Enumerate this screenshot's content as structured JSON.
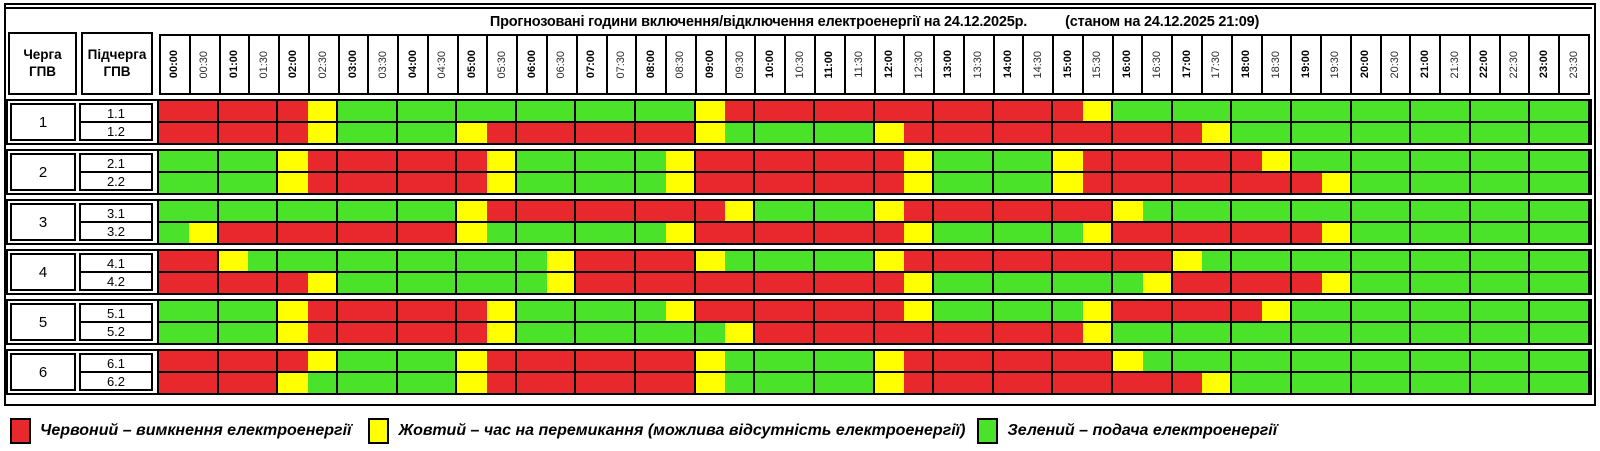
{
  "header": {
    "queue_col": "Черга ГПВ",
    "subqueue_col": "Підчерга ГПВ",
    "title": "Прогнозовані години включення/відключення електроенергії на 24.12.2025р.",
    "status": "(станом на 24.12.2025 21:09)",
    "times": [
      "00:00",
      "00:30",
      "01:00",
      "01:30",
      "02:00",
      "02:30",
      "03:00",
      "03:30",
      "04:00",
      "04:30",
      "05:00",
      "05:30",
      "06:00",
      "06:30",
      "07:00",
      "07:30",
      "08:00",
      "08:30",
      "09:00",
      "09:30",
      "10:00",
      "10:30",
      "11:00",
      "11:30",
      "12:00",
      "12:30",
      "13:00",
      "13:30",
      "14:00",
      "14:30",
      "15:00",
      "15:30",
      "16:00",
      "16:30",
      "17:00",
      "17:30",
      "18:00",
      "18:30",
      "19:00",
      "19:30",
      "20:00",
      "20:30",
      "21:00",
      "21:30",
      "22:00",
      "22:30",
      "23:00",
      "23:30"
    ]
  },
  "colors": {
    "R": "#e8282d",
    "Y": "#ffff00",
    "G": "#4be32a"
  },
  "groups": [
    {
      "queue": "1",
      "rows": [
        {
          "label": "1.1",
          "pattern": "RRRRRYGGGGGGGGGGGGYRRRRRRRRRRRRYGGGGGGGGGGGGGGGG"
        },
        {
          "label": "1.2",
          "pattern": "RRRRRYGGGGYRRRRRRRYGGGGGYRRRRRRRRRRYGGGGGGGGGGGG"
        }
      ]
    },
    {
      "queue": "2",
      "rows": [
        {
          "label": "2.1",
          "pattern": "GGGGYRRRRRRYGGGGGYRRRRRRRYGGGGYRRRRRRYGGGGGGGGGG"
        },
        {
          "label": "2.2",
          "pattern": "GGGGYRRRRRRYGGGGGYRRRRRRRYGGGGYRRRRRRRRYGGGGGGGG"
        }
      ]
    },
    {
      "queue": "3",
      "rows": [
        {
          "label": "3.1",
          "pattern": "GGGGGGGGGGYRRRRRRRRYGGGGYRRRRRRRYGGGGGGGGGGGGGGG"
        },
        {
          "label": "3.2",
          "pattern": "GYRRRRRRRRYGGGGGGYRRRRRRRYGGGGGYRRRRRRRYGGGGGGGG"
        }
      ]
    },
    {
      "queue": "4",
      "rows": [
        {
          "label": "4.1",
          "pattern": "RRYGGGGGGGGGGYRRRRYGGGGGYRRRRRRRRRYGGGGGGGGGGGGG"
        },
        {
          "label": "4.2",
          "pattern": "RRRRRYGGGGGGGYRRRRRRRRRRRYGGGGGGGYRRRRRYGGGGGGGG"
        }
      ]
    },
    {
      "queue": "5",
      "rows": [
        {
          "label": "5.1",
          "pattern": "GGGGYRRRRRRYGGGGGYRRRRRRRYGGGGGYRRRRRYGGGGGGGGGG"
        },
        {
          "label": "5.2",
          "pattern": "GGGGYRRRRRRYGGGGGGGYRRRRRRRRRRRYGGGGGGGGGGGGGGGG"
        }
      ]
    },
    {
      "queue": "6",
      "rows": [
        {
          "label": "6.1",
          "pattern": "RRRRRYGGGGYRRRRRRRYGGGGGYRRRRRRRYGGGGGGGGGGGGGGG"
        },
        {
          "label": "6.2",
          "pattern": "RRRRYGGGGGYRRRRRRRYGGGGGYRRRRRRRRRRYGGGGGGGGGGGG"
        }
      ]
    }
  ],
  "legend": [
    {
      "key": "R",
      "color": "#e8282d",
      "label": "Червоний – вимкнення електроенергії"
    },
    {
      "key": "Y",
      "color": "#ffff00",
      "label": "Жовтий – час на перемикання (можлива відсутність електроенергії)"
    },
    {
      "key": "G",
      "color": "#4be32a",
      "label": "Зелений – подача електроенергії"
    }
  ],
  "chart_data": {
    "type": "heatmap",
    "title": "Прогнозовані години включення/відключення електроенергії на 24.12.2025р.",
    "subtitle": "(станом на 24.12.2025 21:09)",
    "x_categories": [
      "00:00",
      "00:30",
      "01:00",
      "01:30",
      "02:00",
      "02:30",
      "03:00",
      "03:30",
      "04:00",
      "04:30",
      "05:00",
      "05:30",
      "06:00",
      "06:30",
      "07:00",
      "07:30",
      "08:00",
      "08:30",
      "09:00",
      "09:30",
      "10:00",
      "10:30",
      "11:00",
      "11:30",
      "12:00",
      "12:30",
      "13:00",
      "13:30",
      "14:00",
      "14:30",
      "15:00",
      "15:30",
      "16:00",
      "16:30",
      "17:00",
      "17:30",
      "18:00",
      "18:30",
      "19:00",
      "19:30",
      "20:00",
      "20:30",
      "21:00",
      "21:30",
      "22:00",
      "22:30",
      "23:00",
      "23:30"
    ],
    "y_categories": [
      "1.1",
      "1.2",
      "2.1",
      "2.2",
      "3.1",
      "3.2",
      "4.1",
      "4.2",
      "5.1",
      "5.2",
      "6.1",
      "6.2"
    ],
    "cell_duration_minutes": 30,
    "value_encoding": {
      "R": "вимкнення електроенергії",
      "Y": "час на перемикання (можлива відсутність електроенергії)",
      "G": "подача електроенергії"
    },
    "rows": [
      {
        "subqueue": "1.1",
        "pattern": "RRRRRYGGGGGGGGGGGGYRRRRRRRRRRRRYGGGGGGGGGGGGGGGG"
      },
      {
        "subqueue": "1.2",
        "pattern": "RRRRRYGGGGYRRRRRRRYGGGGGYRRRRRRRRRRYGGGGGGGGGGGG"
      },
      {
        "subqueue": "2.1",
        "pattern": "GGGGYRRRRRRYGGGGGYRRRRRRRYGGGGYRRRRRRYGGGGGGGGGG"
      },
      {
        "subqueue": "2.2",
        "pattern": "GGGGYRRRRRRYGGGGGYRRRRRRRYGGGGYRRRRRRRRYGGGGGGGG"
      },
      {
        "subqueue": "3.1",
        "pattern": "GGGGGGGGGGYRRRRRRRRYGGGGYRRRRRRRYGGGGGGGGGGGGGGG"
      },
      {
        "subqueue": "3.2",
        "pattern": "GYRRRRRRRRYGGGGGGYRRRRRRRYGGGGGYRRRRRRRYGGGGGGGG"
      },
      {
        "subqueue": "4.1",
        "pattern": "RRYGGGGGGGGGGYRRRRYGGGGGYRRRRRRRRRYGGGGGGGGGGGGG"
      },
      {
        "subqueue": "4.2",
        "pattern": "RRRRRYGGGGGGGYRRRRRRRRRRRYGGGGGGGYRRRRRYGGGGGGGG"
      },
      {
        "subqueue": "5.1",
        "pattern": "GGGGYRRRRRRYGGGGGYRRRRRRRYGGGGGYRRRRRYGGGGGGGGGG"
      },
      {
        "subqueue": "5.2",
        "pattern": "GGGGYRRRRRRYGGGGGGGYRRRRRRRRRRRYGGGGGGGGGGGGGGGG"
      },
      {
        "subqueue": "6.1",
        "pattern": "RRRRRYGGGGYRRRRRRRYGGGGGYRRRRRRRYGGGGGGGGGGGGGGG"
      },
      {
        "subqueue": "6.2",
        "pattern": "RRRRYGGGGGYRRRRRRRYGGGGGYRRRRRRRRRRYGGGGGGGGGGGG"
      }
    ]
  }
}
